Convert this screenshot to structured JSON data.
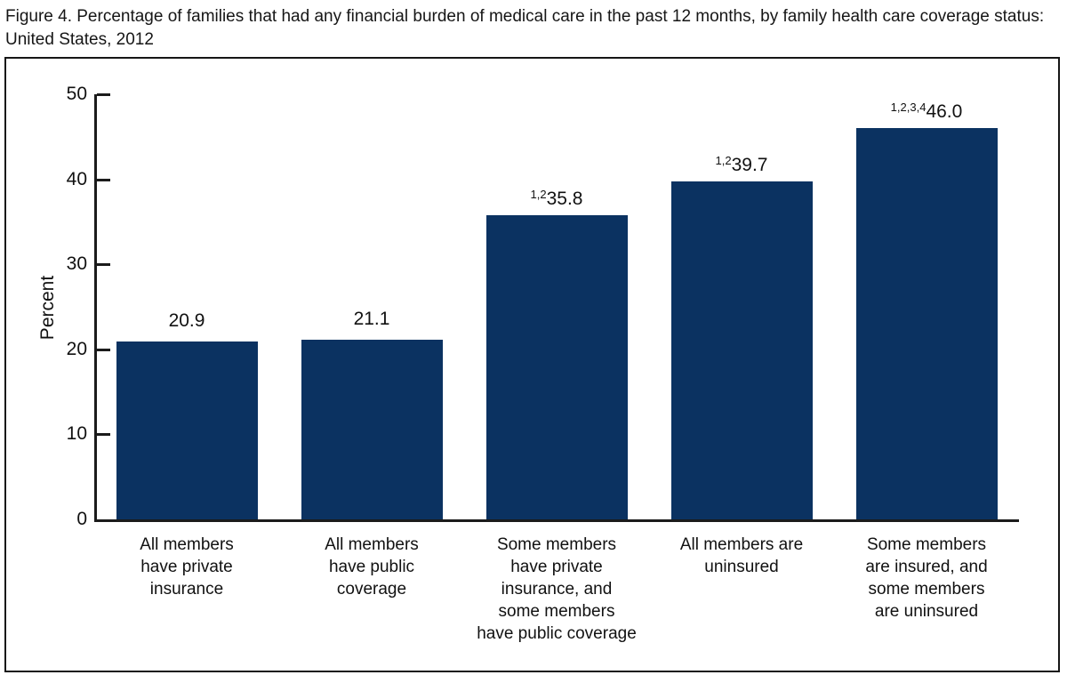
{
  "chart_data": {
    "type": "bar",
    "title": "Figure 4. Percentage of families that had any financial burden of medical care in the past 12 months, by family health care coverage status: United States, 2012",
    "xlabel": "",
    "ylabel": "Percent",
    "ylim": [
      0,
      50
    ],
    "yticks": [
      0,
      10,
      20,
      30,
      40,
      50
    ],
    "grid": false,
    "legend_position": "none",
    "bar_color": "#0b3261",
    "axis_color": "#1b1b1b",
    "categories": [
      "All members have private insurance",
      "All members have public coverage",
      "Some members have private insurance, and some members have public coverage",
      "All members are uninsured",
      "Some members are insured, and some members are uninsured"
    ],
    "category_label_lines": [
      [
        "All members",
        "have private",
        "insurance"
      ],
      [
        "All members",
        "have public",
        "coverage"
      ],
      [
        "Some members",
        "have private",
        "insurance, and",
        "some members",
        "have public coverage"
      ],
      [
        "All members are",
        "uninsured"
      ],
      [
        "Some members",
        "are insured, and",
        "some members",
        "are uninsured"
      ]
    ],
    "values": [
      20.9,
      21.1,
      35.8,
      39.7,
      46.0
    ],
    "value_labels": [
      "20.9",
      "21.1",
      "35.8",
      "39.7",
      "46.0"
    ],
    "value_superscripts": [
      "",
      "",
      "1,2",
      "1,2",
      "1,2,3,4"
    ]
  }
}
